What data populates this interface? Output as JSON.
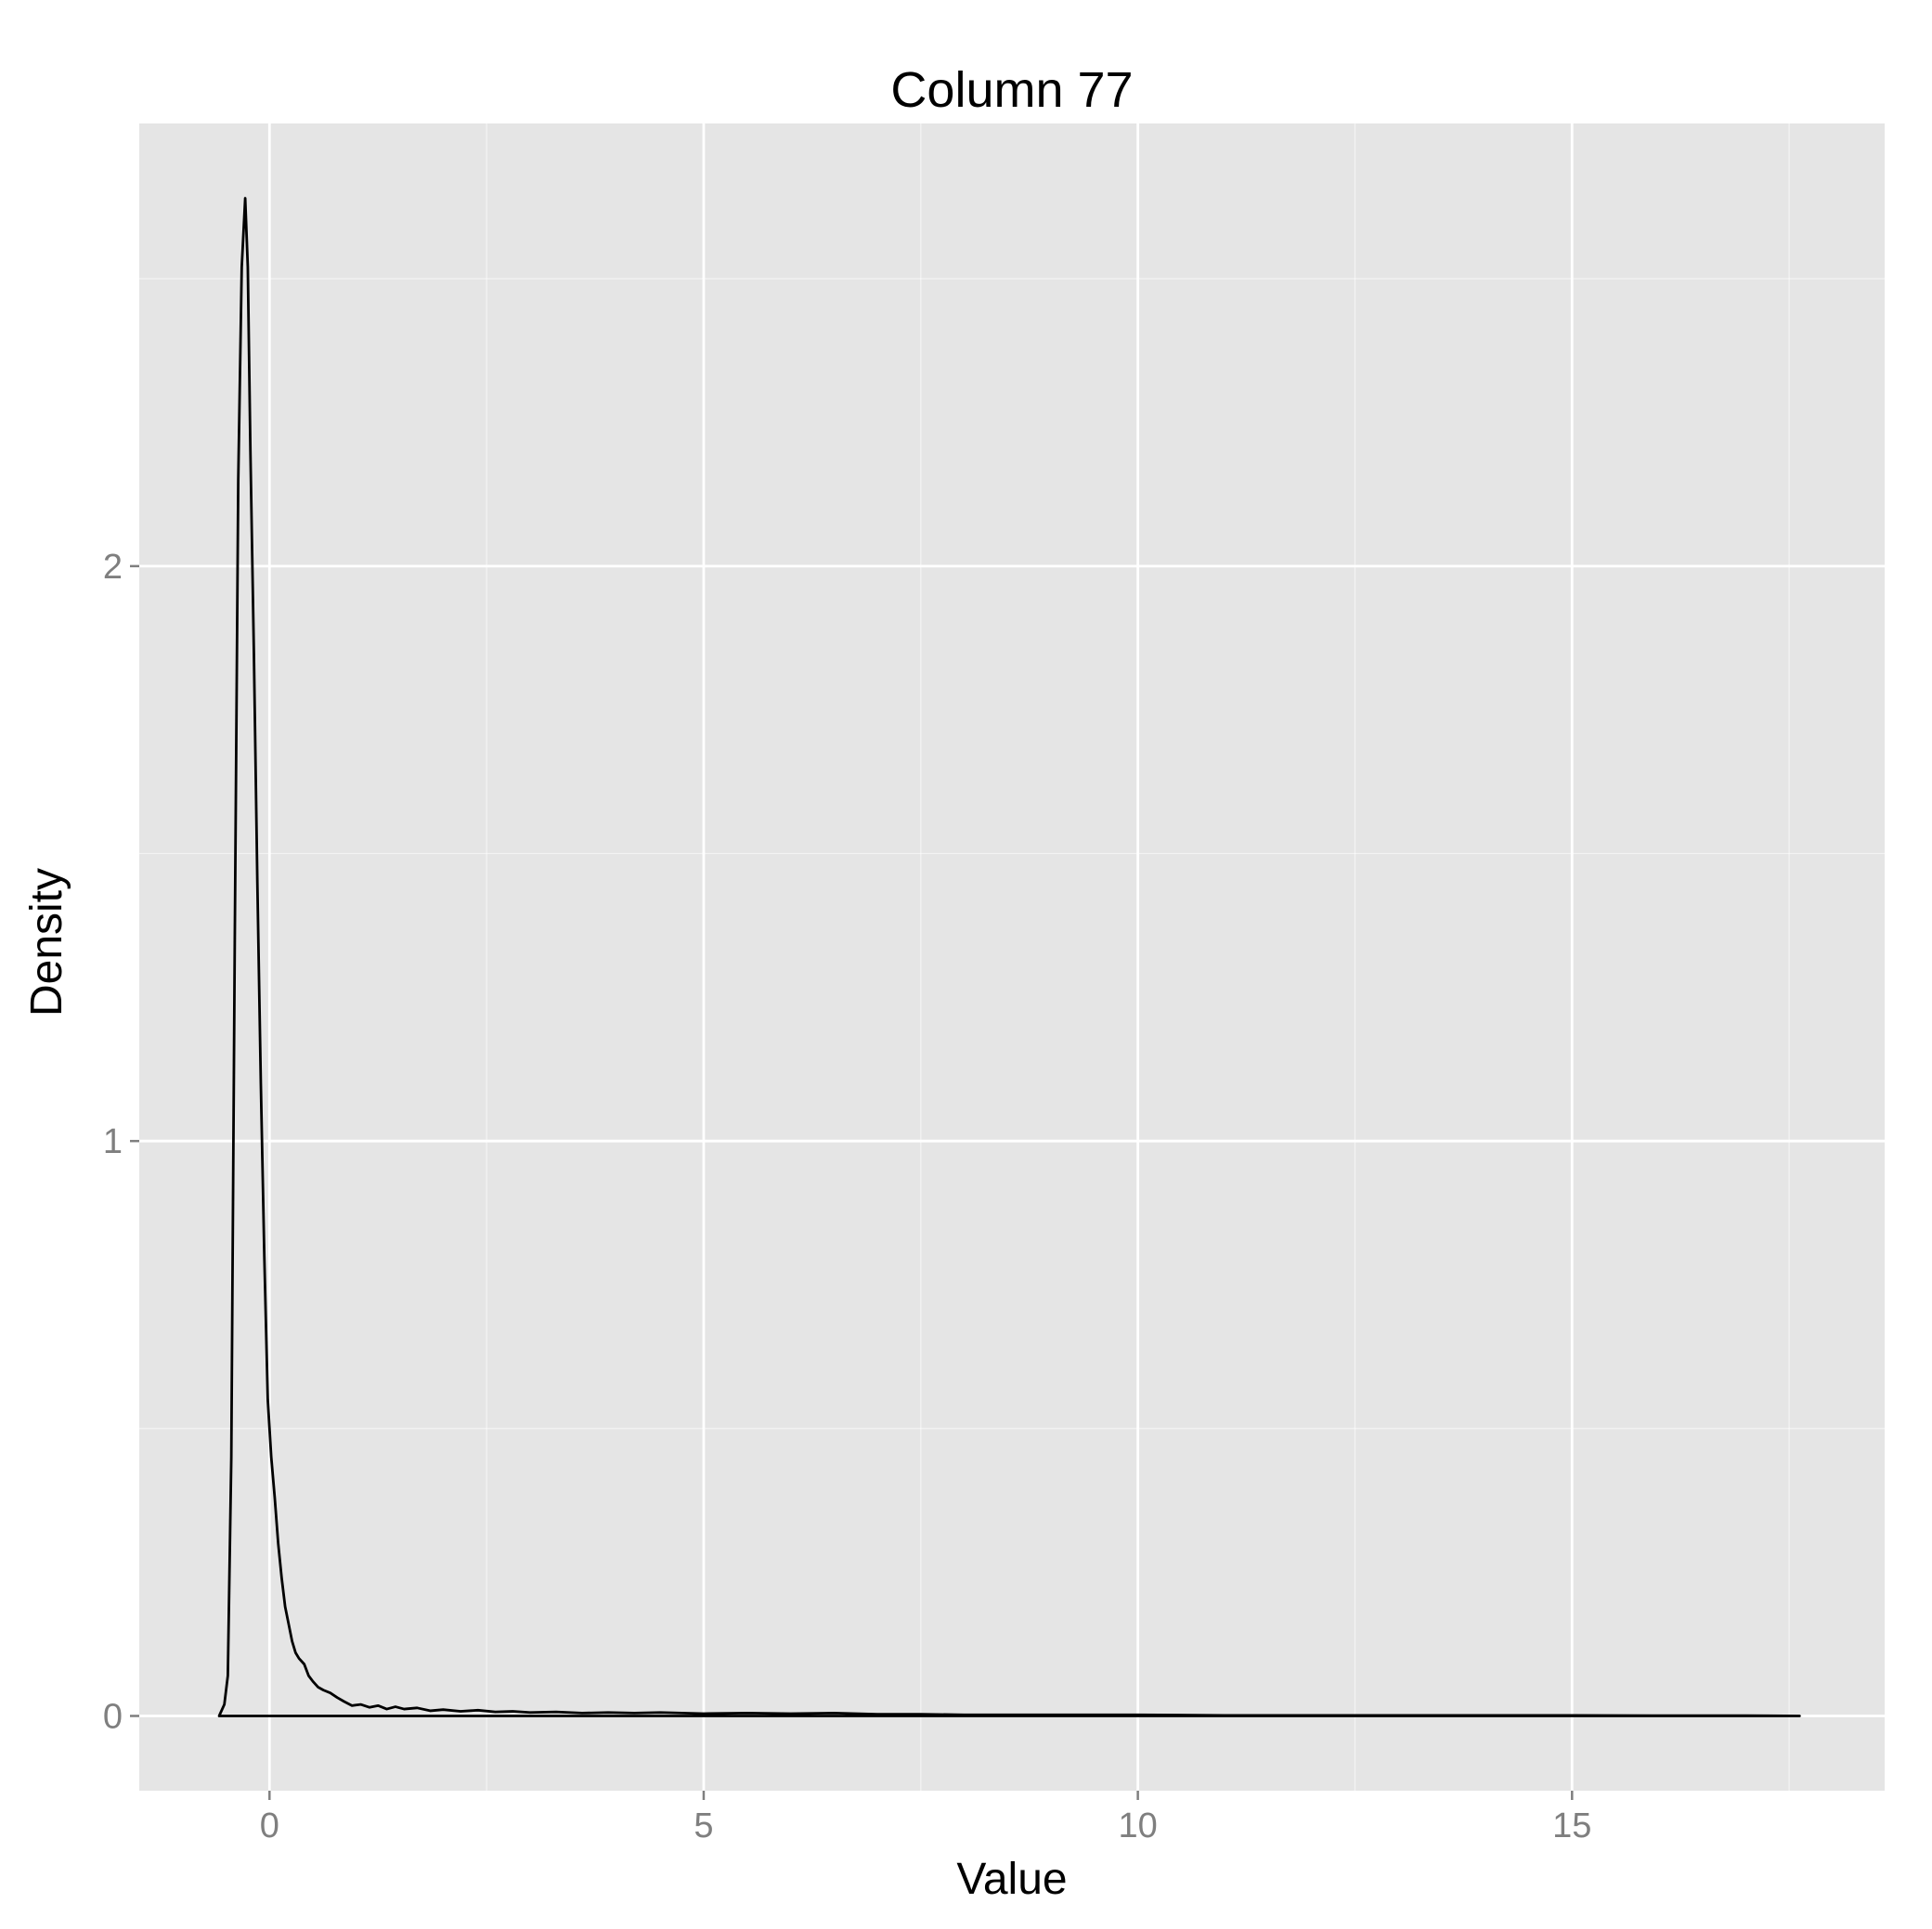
{
  "chart_data": {
    "type": "area",
    "title": "Column 77",
    "xlabel": "Value",
    "ylabel": "Density",
    "xlim": [
      -1.5,
      18.6
    ],
    "ylim": [
      -0.13,
      2.77
    ],
    "x_ticks": [
      0,
      5,
      10,
      15
    ],
    "x_tick_labels": [
      "0",
      "5",
      "10",
      "15"
    ],
    "y_ticks": [
      0,
      1,
      2
    ],
    "y_tick_labels": [
      "0",
      "1",
      "2"
    ],
    "x_minor_gridlines": [
      2.5,
      7.5,
      12.5,
      17.5
    ],
    "y_minor_gridlines": [
      0.5,
      1.5,
      2.5
    ],
    "grid": true,
    "legend": "none",
    "colors": {
      "panel": "#e5e5e5",
      "grid": "#ffffff",
      "line": "#000000",
      "tick_text": "#7f7f7f",
      "text": "#000000"
    },
    "series": [
      {
        "x": [
          -0.58,
          -0.52,
          -0.48,
          -0.44,
          -0.4,
          -0.36,
          -0.32,
          -0.28,
          -0.25,
          -0.22,
          -0.18,
          -0.14,
          -0.1,
          -0.06,
          -0.02,
          0.02,
          0.06,
          0.1,
          0.14,
          0.18,
          0.22,
          0.26,
          0.3,
          0.34,
          0.4,
          0.45,
          0.5,
          0.56,
          0.62,
          0.7,
          0.78,
          0.86,
          0.95,
          1.05,
          1.15,
          1.25,
          1.35,
          1.45,
          1.55,
          1.7,
          1.85,
          2.0,
          2.2,
          2.4,
          2.6,
          2.8,
          3.0,
          3.3,
          3.6,
          3.9,
          4.2,
          4.5,
          5.0,
          5.5,
          6.0,
          6.5,
          7.0,
          7.5,
          8.0,
          9.0,
          10.0,
          11.0,
          12.0,
          13.0,
          14.0,
          15.0,
          16.0,
          17.0,
          17.62
        ],
        "y": [
          0.0,
          0.02,
          0.07,
          0.45,
          1.35,
          2.15,
          2.52,
          2.64,
          2.52,
          2.2,
          1.85,
          1.45,
          1.1,
          0.8,
          0.55,
          0.45,
          0.38,
          0.3,
          0.24,
          0.19,
          0.16,
          0.13,
          0.11,
          0.1,
          0.09,
          0.07,
          0.06,
          0.05,
          0.045,
          0.04,
          0.032,
          0.025,
          0.018,
          0.02,
          0.015,
          0.018,
          0.012,
          0.016,
          0.012,
          0.014,
          0.009,
          0.011,
          0.008,
          0.01,
          0.007,
          0.008,
          0.006,
          0.007,
          0.005,
          0.006,
          0.005,
          0.006,
          0.004,
          0.005,
          0.004,
          0.005,
          0.003,
          0.003,
          0.002,
          0.002,
          0.002,
          0.001,
          0.001,
          0.001,
          0.001,
          0.001,
          0.0005,
          0.0005,
          0.0
        ]
      }
    ]
  }
}
